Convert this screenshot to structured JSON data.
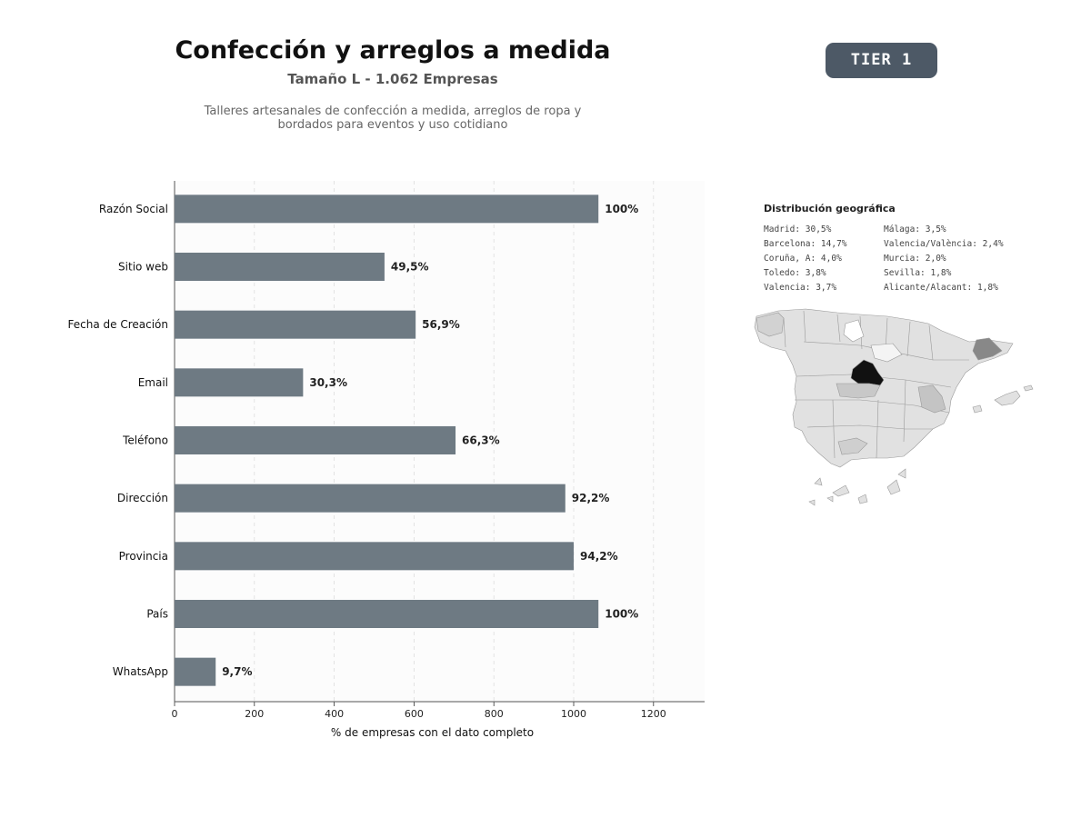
{
  "header": {
    "title": "Confección y arreglos a medida",
    "subtitle": "Tamaño L - 1.062 Empresas",
    "description_line1": "Talleres artesanales de confección a medida, arreglos de ropa y",
    "description_line2": "bordados para eventos y uso cotidiano",
    "tier_badge": "TIER 1"
  },
  "chart_data": {
    "type": "bar",
    "orientation": "horizontal",
    "categories": [
      "Razón Social",
      "Sitio web",
      "Fecha de Creación",
      "Email",
      "Teléfono",
      "Dirección",
      "Provincia",
      "País",
      "WhatsApp"
    ],
    "values": [
      1062,
      526,
      604,
      322,
      704,
      979,
      1000,
      1062,
      103
    ],
    "data_labels": [
      "100%",
      "49,5%",
      "56,9%",
      "30,3%",
      "66,3%",
      "92,2%",
      "94,2%",
      "100%",
      "9,7%"
    ],
    "xlabel": "% de empresas con el dato completo",
    "xlim": [
      0,
      1328
    ],
    "xticks": [
      "0",
      "200",
      "400",
      "600",
      "800",
      "1000",
      "1200"
    ],
    "grid": "vertical dashed",
    "bar_color": "#6e7a83"
  },
  "geo": {
    "title": "Distribución geográfica",
    "col1": [
      "Madrid: 30,5%",
      "Barcelona: 14,7%",
      "Coruña, A: 4,0%",
      "Toledo: 3,8%",
      "Valencia: 3,7%"
    ],
    "col2": [
      "Málaga: 3,5%",
      "Valencia/València: 2,4%",
      "Murcia: 2,0%",
      "Sevilla: 1,8%",
      "Alicante/Alacant: 1,8%"
    ]
  }
}
